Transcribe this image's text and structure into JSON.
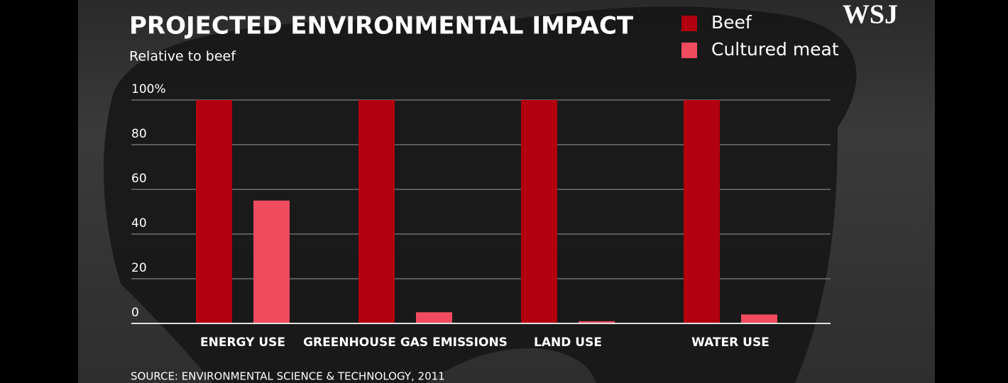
{
  "chart_data": {
    "type": "bar",
    "title": "PROJECTED ENVIRONMENTAL IMPACT",
    "subtitle": "Relative to beef",
    "source": "SOURCE: ENVIRONMENTAL SCIENCE & TECHNOLOGY, 2011",
    "brand": "WSJ",
    "categories": [
      "ENERGY USE",
      "GREENHOUSE GAS EMISSIONS",
      "LAND USE",
      "WATER USE"
    ],
    "series": [
      {
        "name": "Beef",
        "color": "#b3000e",
        "values": [
          100,
          100,
          100,
          100
        ]
      },
      {
        "name": "Cultured meat",
        "color": "#f04b5f",
        "values": [
          55,
          5,
          1,
          4
        ]
      }
    ],
    "ylim": [
      0,
      100
    ],
    "yticks": [
      {
        "value": 100,
        "label": "100%"
      },
      80,
      60,
      40,
      20,
      0
    ],
    "grid": true,
    "legend": "top-right"
  }
}
